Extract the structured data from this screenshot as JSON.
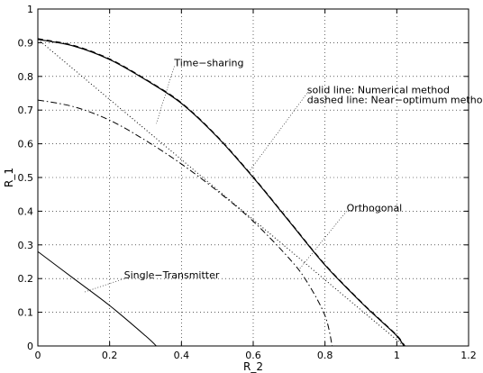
{
  "chart_data": {
    "type": "line",
    "title": "",
    "xlabel": "R_2",
    "ylabel": "R_1",
    "xlim": [
      0,
      1.2
    ],
    "ylim": [
      0,
      1
    ],
    "grid": true,
    "xticks": [
      "0",
      "0.2",
      "0.4",
      "0.6",
      "0.8",
      "1",
      "1.2"
    ],
    "yticks": [
      "0",
      "0.1",
      "0.2",
      "0.3",
      "0.4",
      "0.5",
      "0.6",
      "0.7",
      "0.8",
      "0.9",
      "1"
    ],
    "series": [
      {
        "style": "solid",
        "points": [
          [
            0,
            0.91
          ],
          [
            0.1,
            0.89
          ],
          [
            0.2,
            0.85
          ],
          [
            0.3,
            0.79
          ],
          [
            0.4,
            0.72
          ],
          [
            0.5,
            0.62
          ],
          [
            0.6,
            0.5
          ],
          [
            0.7,
            0.37
          ],
          [
            0.8,
            0.24
          ],
          [
            0.9,
            0.13
          ],
          [
            0.95,
            0.08
          ],
          [
            1.0,
            0.03
          ],
          [
            1.02,
            0.0
          ]
        ]
      },
      {
        "style": "dashed",
        "points": [
          [
            0,
            0.912
          ],
          [
            0.1,
            0.892
          ],
          [
            0.2,
            0.852
          ],
          [
            0.3,
            0.792
          ],
          [
            0.4,
            0.722
          ],
          [
            0.5,
            0.622
          ],
          [
            0.6,
            0.502
          ],
          [
            0.7,
            0.372
          ],
          [
            0.8,
            0.242
          ],
          [
            0.9,
            0.132
          ],
          [
            0.95,
            0.082
          ],
          [
            1.0,
            0.032
          ],
          [
            1.023,
            0.0
          ]
        ]
      },
      {
        "style": "dotted",
        "points": [
          [
            0,
            0.91
          ],
          [
            1.02,
            0.0
          ]
        ]
      },
      {
        "style": "dashdot",
        "points": [
          [
            0,
            0.73
          ],
          [
            0.1,
            0.71
          ],
          [
            0.2,
            0.67
          ],
          [
            0.3,
            0.61
          ],
          [
            0.4,
            0.54
          ],
          [
            0.5,
            0.46
          ],
          [
            0.6,
            0.37
          ],
          [
            0.7,
            0.26
          ],
          [
            0.75,
            0.19
          ],
          [
            0.8,
            0.09
          ],
          [
            0.82,
            0.0
          ]
        ]
      },
      {
        "style": "solid-thin",
        "points": [
          [
            0,
            0.28
          ],
          [
            0.1,
            0.2
          ],
          [
            0.2,
            0.12
          ],
          [
            0.3,
            0.03
          ],
          [
            0.33,
            0.0
          ]
        ]
      }
    ],
    "annotations": [
      {
        "text": "Time−sharing",
        "at": [
          0.38,
          0.83
        ],
        "arrow_to": [
          0.33,
          0.66
        ]
      },
      {
        "text": "solid line: Numerical method",
        "at": [
          0.75,
          0.75
        ],
        "arrow_to": [
          0.59,
          0.52
        ]
      },
      {
        "text": "dashed line: Near−optimum method",
        "at": [
          0.75,
          0.72
        ]
      },
      {
        "text": "Orthogonal",
        "at": [
          0.86,
          0.4
        ],
        "arrow_to": [
          0.73,
          0.23
        ]
      },
      {
        "text": "Single−Transmitter",
        "at": [
          0.24,
          0.2
        ],
        "arrow_to": [
          0.13,
          0.16
        ]
      }
    ]
  }
}
